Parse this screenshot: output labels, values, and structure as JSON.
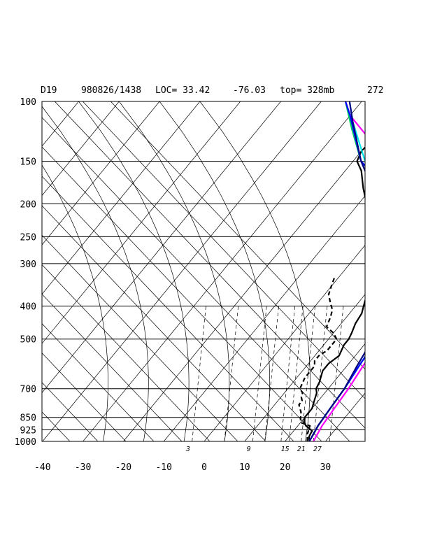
{
  "header": {
    "station": "D19",
    "datetime": "980826/1438",
    "loc": "LOC= 33.42",
    "lon": "-76.03",
    "top": "top= 328mb",
    "value": "272"
  },
  "chart_data": {
    "type": "line",
    "title": "",
    "xlabel": "",
    "ylabel": "",
    "pressure_levels": [
      1000,
      925,
      850,
      700,
      500,
      400,
      300,
      250,
      200,
      150,
      100
    ],
    "pressure_tick_labels": [
      "1000",
      "925",
      "850",
      "700",
      "500",
      "400",
      "300",
      "250",
      "200",
      "150",
      "100"
    ],
    "temperature_tick_labels": [
      "-40",
      "-30",
      "-20",
      "-10",
      "0",
      "10",
      "20",
      "30"
    ],
    "temperature_ticks": [
      -40,
      -30,
      -20,
      -10,
      0,
      10,
      20,
      30
    ],
    "xlim": [
      -40,
      40
    ],
    "ylim": [
      1000,
      100
    ],
    "mixing_ratio_labels": [
      "3",
      "9",
      "15",
      "21",
      "27"
    ],
    "grid": true,
    "series": [
      {
        "color": "#000000",
        "style": "solid",
        "points": [
          [
            26,
            1000
          ],
          [
            25,
            970
          ],
          [
            24.5,
            930
          ],
          [
            22,
            900
          ],
          [
            21,
            880
          ],
          [
            20,
            850
          ],
          [
            20,
            800
          ],
          [
            19,
            760
          ],
          [
            18,
            720
          ],
          [
            17,
            700
          ],
          [
            16.5,
            670
          ],
          [
            15,
            620
          ],
          [
            15,
            590
          ],
          [
            16,
            560
          ],
          [
            15,
            520
          ],
          [
            15,
            500
          ],
          [
            14.5,
            480
          ],
          [
            13.5,
            450
          ],
          [
            13,
            420
          ],
          [
            12,
            400
          ],
          [
            11,
            380
          ],
          [
            9,
            350
          ],
          [
            7,
            320
          ],
          [
            5,
            300
          ],
          [
            2,
            270
          ],
          [
            0,
            250
          ],
          [
            -3,
            230
          ],
          [
            -5,
            220
          ],
          [
            -8,
            200
          ],
          [
            -12,
            180
          ],
          [
            -16,
            160
          ],
          [
            -19,
            150
          ],
          [
            -20,
            140
          ],
          [
            -19,
            125
          ],
          [
            -17,
            110
          ],
          [
            -15,
            100
          ]
        ]
      },
      {
        "color": "#000000",
        "style": "dashed",
        "points": [
          [
            25.5,
            1000
          ],
          [
            24,
            950
          ],
          [
            23,
            900
          ],
          [
            20,
            880
          ],
          [
            19,
            850
          ],
          [
            18,
            820
          ],
          [
            17,
            800
          ],
          [
            16,
            780
          ],
          [
            16,
            760
          ],
          [
            15,
            740
          ],
          [
            14.5,
            720
          ],
          [
            13,
            700
          ],
          [
            12,
            650
          ],
          [
            12,
            600
          ],
          [
            11,
            580
          ],
          [
            11,
            560
          ],
          [
            12,
            540
          ],
          [
            12,
            500
          ],
          [
            10,
            480
          ],
          [
            7,
            460
          ],
          [
            6,
            430
          ],
          [
            5,
            410
          ],
          [
            3,
            390
          ],
          [
            1,
            370
          ],
          [
            0,
            350
          ],
          [
            -1,
            330
          ]
        ]
      },
      {
        "color": "#ff00ff",
        "points": [
          [
            27,
            1000
          ],
          [
            26,
            900
          ],
          [
            25.5,
            800
          ],
          [
            25,
            700
          ],
          [
            24,
            600
          ],
          [
            23.5,
            530
          ],
          [
            25,
            500
          ],
          [
            25,
            450
          ],
          [
            23,
            400
          ],
          [
            21,
            350
          ],
          [
            19,
            310
          ],
          [
            16,
            280
          ],
          [
            13,
            250
          ],
          [
            8,
            220
          ],
          [
            2,
            200
          ],
          [
            -5,
            170
          ],
          [
            -12,
            150
          ],
          [
            -20,
            130
          ],
          [
            -30,
            110
          ],
          [
            -34,
            100
          ]
        ]
      },
      {
        "color": "#00cc66",
        "points": [
          [
            26,
            1000
          ],
          [
            25,
            900
          ],
          [
            24.5,
            800
          ],
          [
            24,
            700
          ],
          [
            23,
            600
          ],
          [
            22,
            500
          ],
          [
            20,
            420
          ],
          [
            18,
            370
          ],
          [
            15,
            320
          ],
          [
            12,
            280
          ],
          [
            8,
            250
          ],
          [
            4,
            220
          ],
          [
            -1,
            200
          ],
          [
            -10,
            170
          ],
          [
            -18,
            150
          ],
          [
            -27,
            120
          ],
          [
            -34,
            100
          ]
        ]
      },
      {
        "color": "#00e5e5",
        "points": [
          [
            26,
            1000
          ],
          [
            25,
            900
          ],
          [
            24.5,
            800
          ],
          [
            24,
            700
          ],
          [
            23,
            600
          ],
          [
            22,
            500
          ],
          [
            20,
            420
          ],
          [
            18.5,
            370
          ],
          [
            16,
            320
          ],
          [
            13,
            280
          ],
          [
            9,
            250
          ],
          [
            5,
            220
          ],
          [
            0,
            200
          ],
          [
            -9,
            170
          ],
          [
            -17,
            150
          ],
          [
            -28,
            115
          ],
          [
            -33,
            100
          ]
        ]
      },
      {
        "color": "#0000ff",
        "points": [
          [
            26,
            1000
          ],
          [
            25,
            900
          ],
          [
            24.5,
            800
          ],
          [
            24,
            700
          ],
          [
            23,
            600
          ],
          [
            22,
            500
          ],
          [
            19,
            420
          ],
          [
            17,
            370
          ],
          [
            14,
            320
          ],
          [
            10,
            280
          ],
          [
            6,
            250
          ],
          [
            2,
            220
          ],
          [
            -2,
            200
          ],
          [
            -10,
            170
          ],
          [
            -18,
            150
          ],
          [
            -30,
            110
          ],
          [
            -34,
            100
          ]
        ]
      },
      {
        "color": "#000080",
        "points": [
          [
            26,
            1000
          ],
          [
            25,
            900
          ],
          [
            24.5,
            800
          ],
          [
            24,
            700
          ],
          [
            22.5,
            600
          ],
          [
            21,
            500
          ],
          [
            18,
            420
          ],
          [
            15,
            360
          ],
          [
            12,
            310
          ],
          [
            9,
            280
          ],
          [
            5,
            250
          ],
          [
            1,
            220
          ],
          [
            -4,
            200
          ],
          [
            -11,
            175
          ],
          [
            -18,
            150
          ],
          [
            -28,
            115
          ],
          [
            -33,
            100
          ]
        ]
      }
    ]
  }
}
